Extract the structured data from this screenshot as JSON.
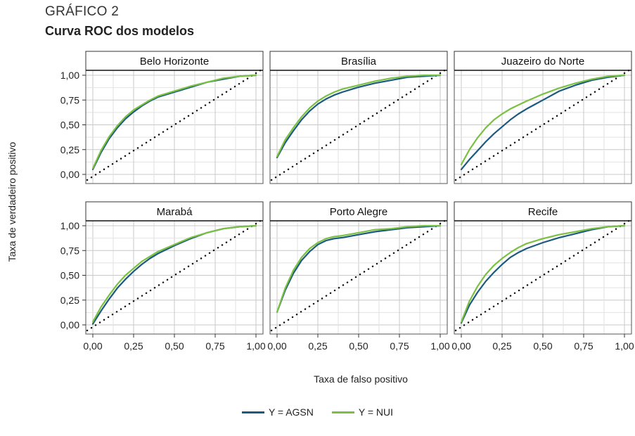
{
  "figure": {
    "label": "GRÁFICO 2",
    "title": "Curva ROC dos modelos"
  },
  "chart_data": {
    "type": "line",
    "facets": [
      "Belo Horizonte",
      "Brasília",
      "Juazeiro do Norte",
      "Marabá",
      "Porto Alegre",
      "Recife"
    ],
    "xlabel": "Taxa de falso positivo",
    "ylabel": "Taxa de verdadeiro positivo",
    "xlim": [
      0,
      1
    ],
    "ylim": [
      0,
      1
    ],
    "x_ticks": [
      "0,00",
      "0,25",
      "0,50",
      "0,75",
      "1,00"
    ],
    "y_ticks": [
      "0,00",
      "0,25",
      "0,50",
      "0,75",
      "1,00"
    ],
    "grid": true,
    "legend_position": "bottom",
    "reference_line": "diagonal",
    "series": [
      {
        "name": "Y = AGSN",
        "color": "#1c5a7f"
      },
      {
        "name": "Y = NUI",
        "color": "#7ac142"
      }
    ],
    "curves": {
      "Belo Horizonte": {
        "Y = AGSN": [
          [
            0,
            0.05
          ],
          [
            0.05,
            0.22
          ],
          [
            0.1,
            0.36
          ],
          [
            0.15,
            0.47
          ],
          [
            0.2,
            0.56
          ],
          [
            0.25,
            0.63
          ],
          [
            0.3,
            0.69
          ],
          [
            0.35,
            0.74
          ],
          [
            0.4,
            0.78
          ],
          [
            0.5,
            0.83
          ],
          [
            0.6,
            0.88
          ],
          [
            0.7,
            0.93
          ],
          [
            0.8,
            0.96
          ],
          [
            0.9,
            0.99
          ],
          [
            1,
            1
          ]
        ],
        "Y = NUI": [
          [
            0,
            0.06
          ],
          [
            0.05,
            0.24
          ],
          [
            0.1,
            0.38
          ],
          [
            0.15,
            0.49
          ],
          [
            0.2,
            0.58
          ],
          [
            0.25,
            0.65
          ],
          [
            0.3,
            0.7
          ],
          [
            0.35,
            0.75
          ],
          [
            0.4,
            0.79
          ],
          [
            0.5,
            0.84
          ],
          [
            0.6,
            0.89
          ],
          [
            0.7,
            0.93
          ],
          [
            0.8,
            0.97
          ],
          [
            0.9,
            0.99
          ],
          [
            1,
            1
          ]
        ]
      },
      "Brasília": {
        "Y = AGSN": [
          [
            0,
            0.17
          ],
          [
            0.05,
            0.32
          ],
          [
            0.1,
            0.44
          ],
          [
            0.15,
            0.55
          ],
          [
            0.2,
            0.64
          ],
          [
            0.25,
            0.71
          ],
          [
            0.3,
            0.76
          ],
          [
            0.35,
            0.8
          ],
          [
            0.4,
            0.83
          ],
          [
            0.5,
            0.88
          ],
          [
            0.6,
            0.92
          ],
          [
            0.7,
            0.95
          ],
          [
            0.8,
            0.98
          ],
          [
            0.9,
            0.99
          ],
          [
            1,
            1
          ]
        ],
        "Y = NUI": [
          [
            0,
            0.18
          ],
          [
            0.05,
            0.35
          ],
          [
            0.1,
            0.47
          ],
          [
            0.15,
            0.58
          ],
          [
            0.2,
            0.67
          ],
          [
            0.25,
            0.74
          ],
          [
            0.3,
            0.79
          ],
          [
            0.35,
            0.83
          ],
          [
            0.4,
            0.86
          ],
          [
            0.5,
            0.9
          ],
          [
            0.6,
            0.94
          ],
          [
            0.7,
            0.97
          ],
          [
            0.8,
            0.99
          ],
          [
            0.9,
            1
          ],
          [
            1,
            1
          ]
        ]
      },
      "Juazeiro do Norte": {
        "Y = AGSN": [
          [
            0,
            0.05
          ],
          [
            0.05,
            0.15
          ],
          [
            0.1,
            0.24
          ],
          [
            0.15,
            0.33
          ],
          [
            0.2,
            0.41
          ],
          [
            0.25,
            0.48
          ],
          [
            0.3,
            0.55
          ],
          [
            0.35,
            0.61
          ],
          [
            0.4,
            0.66
          ],
          [
            0.5,
            0.75
          ],
          [
            0.6,
            0.84
          ],
          [
            0.7,
            0.9
          ],
          [
            0.8,
            0.95
          ],
          [
            0.9,
            0.98
          ],
          [
            1,
            1
          ]
        ],
        "Y = NUI": [
          [
            0,
            0.1
          ],
          [
            0.05,
            0.25
          ],
          [
            0.1,
            0.37
          ],
          [
            0.15,
            0.47
          ],
          [
            0.2,
            0.55
          ],
          [
            0.25,
            0.61
          ],
          [
            0.3,
            0.66
          ],
          [
            0.35,
            0.7
          ],
          [
            0.4,
            0.74
          ],
          [
            0.5,
            0.81
          ],
          [
            0.6,
            0.87
          ],
          [
            0.7,
            0.92
          ],
          [
            0.8,
            0.96
          ],
          [
            0.9,
            0.99
          ],
          [
            1,
            1
          ]
        ]
      },
      "Marabá": {
        "Y = AGSN": [
          [
            0,
            0.01
          ],
          [
            0.05,
            0.14
          ],
          [
            0.1,
            0.26
          ],
          [
            0.15,
            0.37
          ],
          [
            0.2,
            0.46
          ],
          [
            0.25,
            0.54
          ],
          [
            0.3,
            0.61
          ],
          [
            0.35,
            0.67
          ],
          [
            0.4,
            0.72
          ],
          [
            0.5,
            0.8
          ],
          [
            0.6,
            0.87
          ],
          [
            0.7,
            0.93
          ],
          [
            0.8,
            0.97
          ],
          [
            0.9,
            0.99
          ],
          [
            1,
            1
          ]
        ],
        "Y = NUI": [
          [
            0,
            0.03
          ],
          [
            0.05,
            0.18
          ],
          [
            0.1,
            0.3
          ],
          [
            0.15,
            0.41
          ],
          [
            0.2,
            0.5
          ],
          [
            0.25,
            0.57
          ],
          [
            0.3,
            0.64
          ],
          [
            0.35,
            0.69
          ],
          [
            0.4,
            0.74
          ],
          [
            0.5,
            0.81
          ],
          [
            0.6,
            0.88
          ],
          [
            0.7,
            0.93
          ],
          [
            0.8,
            0.97
          ],
          [
            0.9,
            0.99
          ],
          [
            1,
            1
          ]
        ]
      },
      "Porto Alegre": {
        "Y = AGSN": [
          [
            0,
            0.13
          ],
          [
            0.05,
            0.35
          ],
          [
            0.1,
            0.52
          ],
          [
            0.15,
            0.65
          ],
          [
            0.2,
            0.74
          ],
          [
            0.25,
            0.81
          ],
          [
            0.3,
            0.85
          ],
          [
            0.35,
            0.87
          ],
          [
            0.4,
            0.88
          ],
          [
            0.5,
            0.91
          ],
          [
            0.6,
            0.94
          ],
          [
            0.7,
            0.96
          ],
          [
            0.8,
            0.98
          ],
          [
            0.9,
            0.99
          ],
          [
            1,
            1
          ]
        ],
        "Y = NUI": [
          [
            0,
            0.13
          ],
          [
            0.05,
            0.37
          ],
          [
            0.1,
            0.55
          ],
          [
            0.15,
            0.68
          ],
          [
            0.2,
            0.77
          ],
          [
            0.25,
            0.83
          ],
          [
            0.3,
            0.87
          ],
          [
            0.35,
            0.89
          ],
          [
            0.4,
            0.9
          ],
          [
            0.5,
            0.93
          ],
          [
            0.6,
            0.96
          ],
          [
            0.7,
            0.97
          ],
          [
            0.8,
            0.99
          ],
          [
            0.9,
            1
          ],
          [
            1,
            1
          ]
        ]
      },
      "Recife": {
        "Y = AGSN": [
          [
            0,
            0.02
          ],
          [
            0.05,
            0.2
          ],
          [
            0.1,
            0.33
          ],
          [
            0.15,
            0.44
          ],
          [
            0.2,
            0.53
          ],
          [
            0.25,
            0.61
          ],
          [
            0.3,
            0.68
          ],
          [
            0.35,
            0.73
          ],
          [
            0.4,
            0.77
          ],
          [
            0.5,
            0.83
          ],
          [
            0.6,
            0.88
          ],
          [
            0.7,
            0.92
          ],
          [
            0.8,
            0.96
          ],
          [
            0.9,
            0.99
          ],
          [
            1,
            1
          ]
        ],
        "Y = NUI": [
          [
            0,
            0.03
          ],
          [
            0.05,
            0.24
          ],
          [
            0.1,
            0.39
          ],
          [
            0.15,
            0.51
          ],
          [
            0.2,
            0.6
          ],
          [
            0.25,
            0.67
          ],
          [
            0.3,
            0.73
          ],
          [
            0.35,
            0.78
          ],
          [
            0.4,
            0.82
          ],
          [
            0.5,
            0.87
          ],
          [
            0.6,
            0.91
          ],
          [
            0.7,
            0.94
          ],
          [
            0.8,
            0.97
          ],
          [
            0.9,
            0.99
          ],
          [
            1,
            1
          ]
        ]
      }
    }
  }
}
